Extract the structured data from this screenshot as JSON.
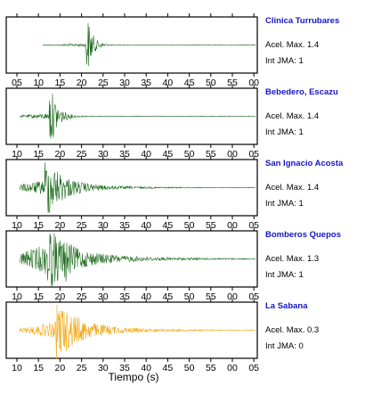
{
  "chart_data": {
    "type": "line",
    "xlabel": "Tiempo (s)",
    "panels": [
      {
        "station": "Clinica Turrubares",
        "accel_label": "Acel. Max. 1.4",
        "jma_label": "Int JMA: 1",
        "color": "#1e6b1e",
        "ticks": [
          "05",
          "10",
          "15",
          "20",
          "25",
          "30",
          "35",
          "40",
          "45",
          "50",
          "55",
          "00"
        ],
        "tick_start_s": 5,
        "onset_s": 21.5,
        "peak_amplitude": 1.0,
        "noise_level": 0.05,
        "decay_s": 1.2
      },
      {
        "station": "Bebedero, Escazu",
        "accel_label": "Acel. Max. 1.4",
        "jma_label": "Int JMA: 1",
        "color": "#1e6b1e",
        "ticks": [
          "10",
          "15",
          "20",
          "25",
          "30",
          "35",
          "40",
          "45",
          "50",
          "55",
          "00",
          "05"
        ],
        "tick_start_s": 10,
        "onset_s": 18.0,
        "peak_amplitude": 1.0,
        "noise_level": 0.09,
        "decay_s": 1.6
      },
      {
        "station": "San Ignacio Acosta",
        "accel_label": "Acel. Max. 1.4",
        "jma_label": "Int JMA: 1",
        "color": "#1e6b1e",
        "ticks": [
          "10",
          "15",
          "20",
          "25",
          "30",
          "35",
          "40",
          "45",
          "50",
          "55",
          "00",
          "05"
        ],
        "tick_start_s": 10,
        "onset_s": 17.0,
        "peak_amplitude": 1.0,
        "noise_level": 0.22,
        "decay_s": 4.0
      },
      {
        "station": "Bomberos Quepos",
        "accel_label": "Acel. Max. 1.3",
        "jma_label": "Int JMA: 1",
        "color": "#1e6b1e",
        "ticks": [
          "10",
          "15",
          "20",
          "25",
          "30",
          "35",
          "40",
          "45",
          "50",
          "55",
          "00",
          "05"
        ],
        "tick_start_s": 10,
        "onset_s": 17.5,
        "peak_amplitude": 1.0,
        "noise_level": 0.45,
        "decay_s": 4.5
      },
      {
        "station": "La Sabana",
        "accel_label": "Acel. Max. 0.3",
        "jma_label": "Int JMA: 0",
        "color": "#f2a818",
        "ticks": [
          "10",
          "15",
          "20",
          "25",
          "30",
          "35",
          "40",
          "45",
          "50",
          "55",
          "00",
          "05"
        ],
        "tick_start_s": 10,
        "onset_s": 19.5,
        "peak_amplitude": 1.0,
        "noise_level": 0.25,
        "decay_s": 5.0
      }
    ]
  }
}
